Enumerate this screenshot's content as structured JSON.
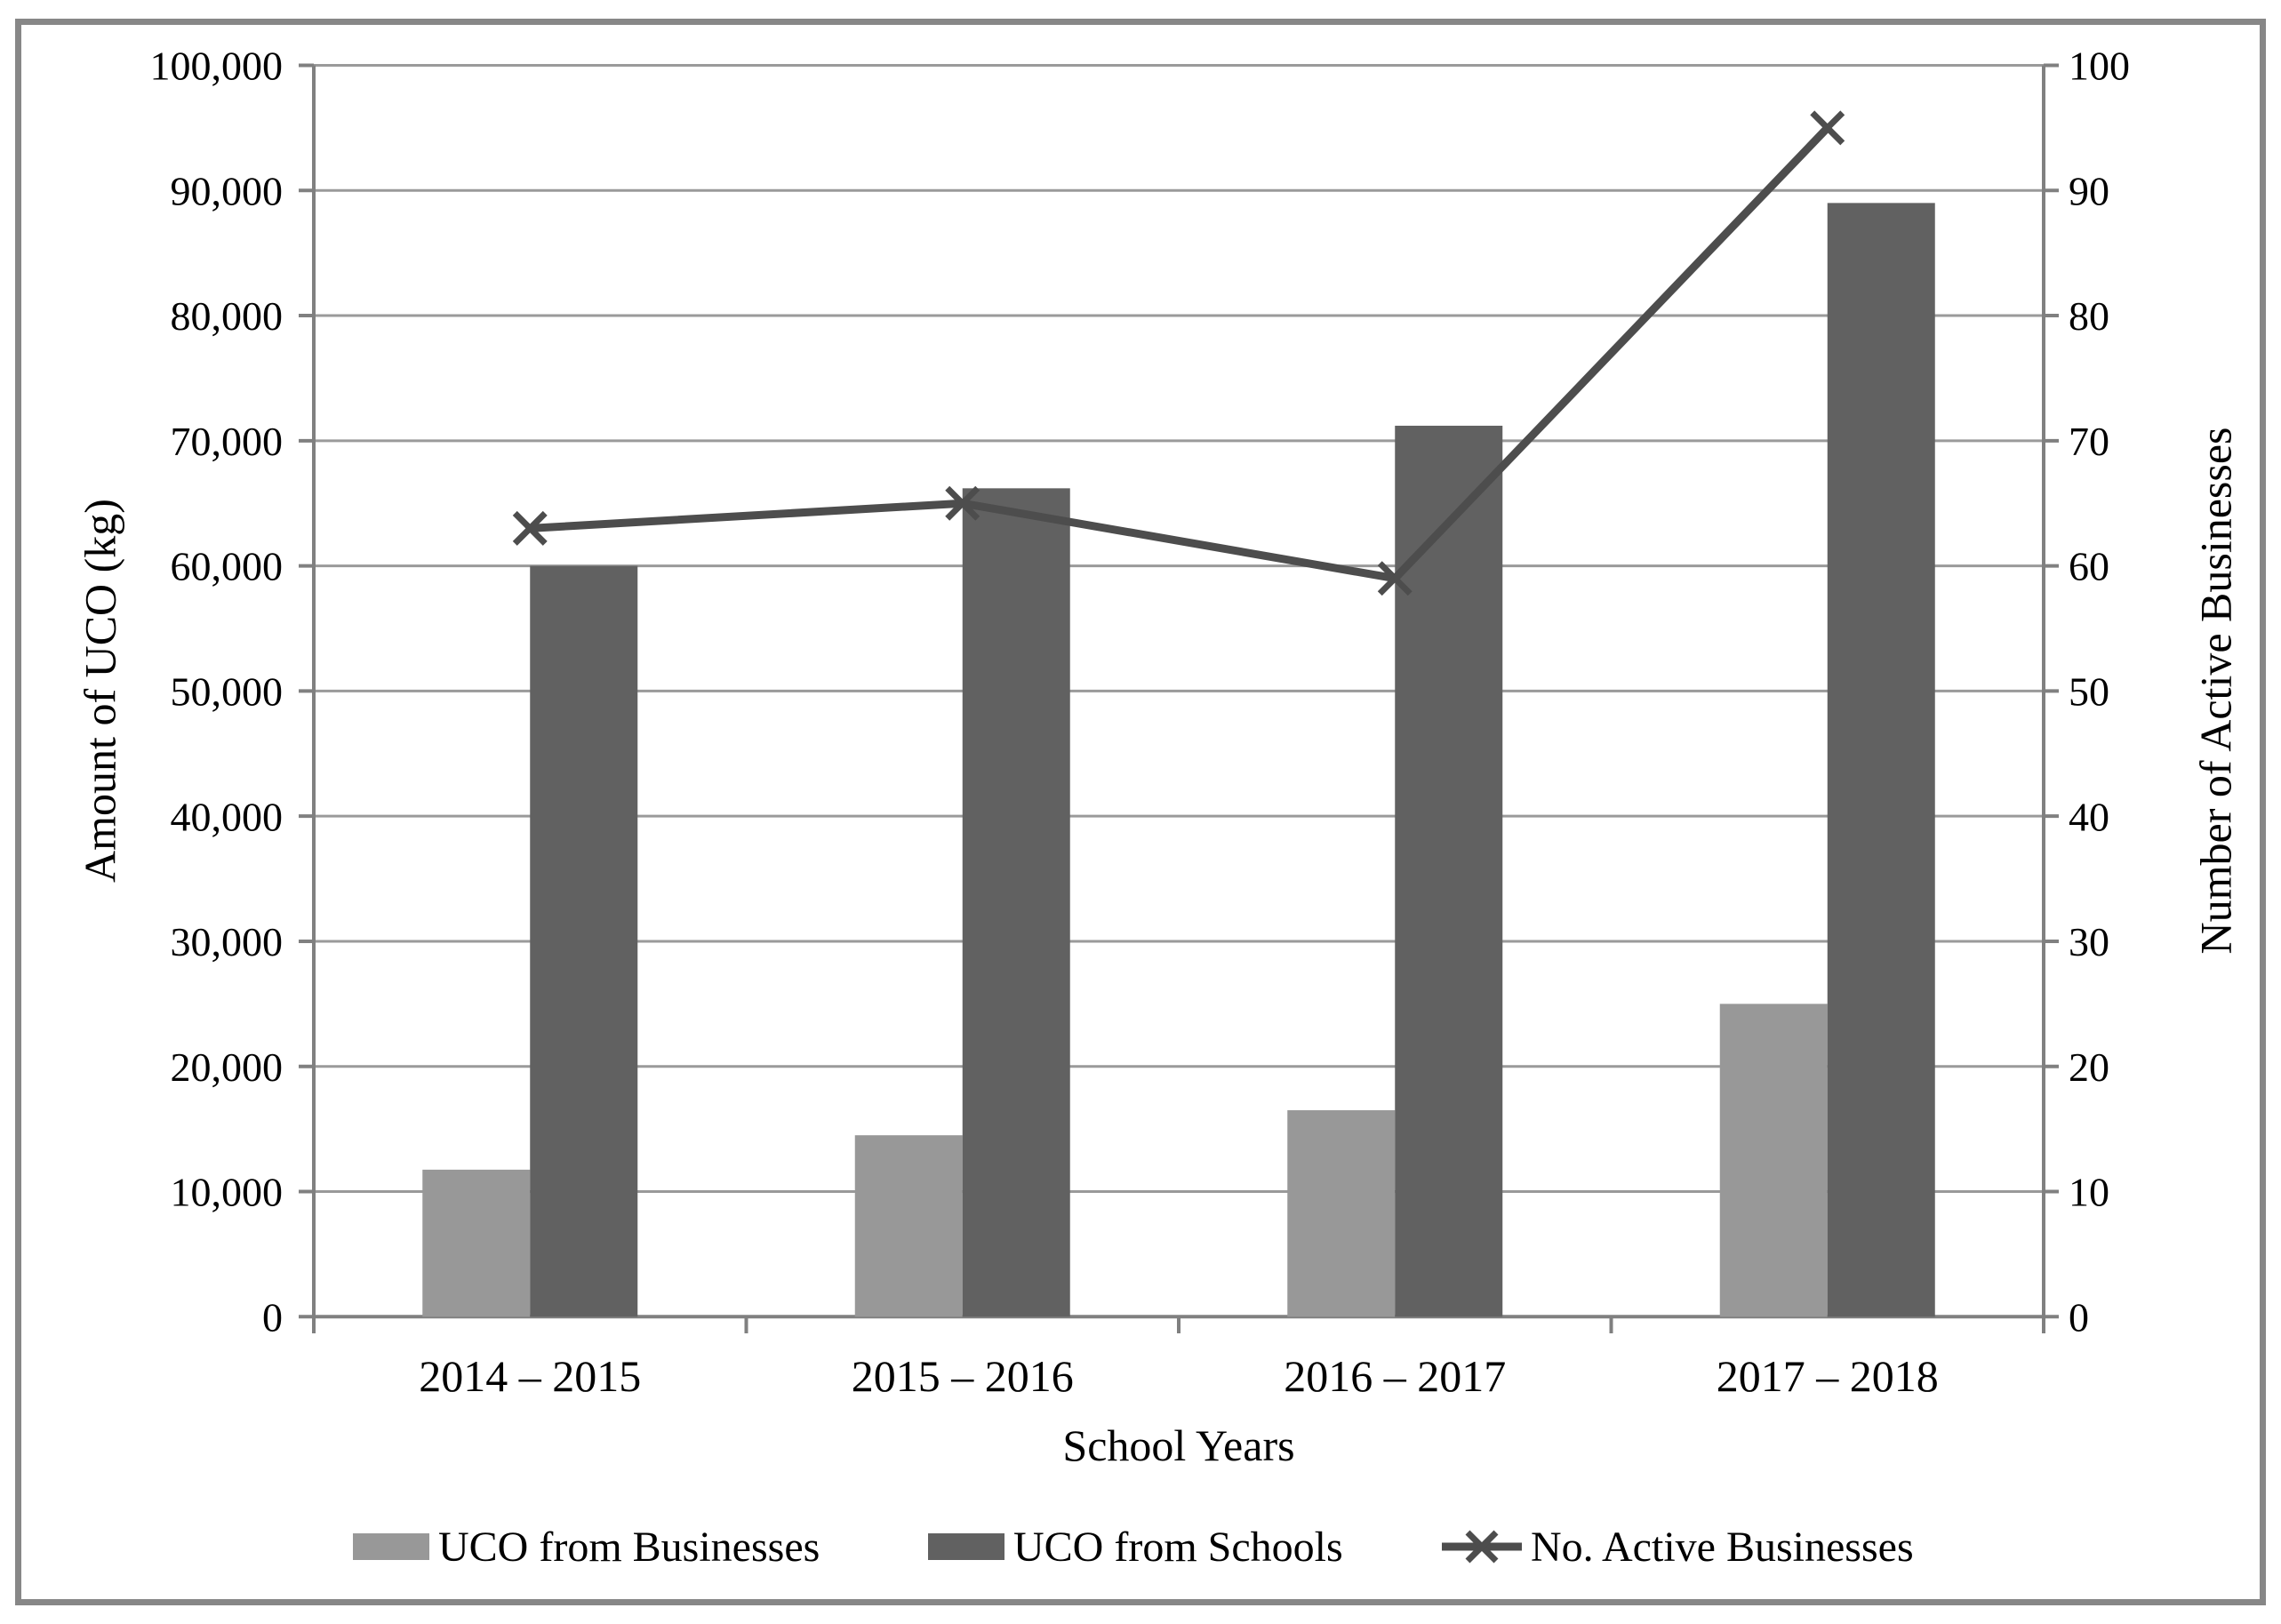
{
  "chart_data": {
    "type": "bar+line combo",
    "title": "",
    "categories": [
      "2014 – 2015",
      "2015 – 2016",
      "2016 – 2017",
      "2017 – 2018"
    ],
    "series": [
      {
        "name": "UCO from Businesses",
        "type": "bar",
        "axis": "left",
        "color": "#989898",
        "values": [
          11750,
          14500,
          16500,
          25000
        ]
      },
      {
        "name": "UCO from Schools",
        "type": "bar",
        "axis": "left",
        "color": "#616161",
        "values": [
          60000,
          66200,
          71200,
          89000
        ]
      },
      {
        "name": "No. Active Businesses",
        "type": "line",
        "axis": "right",
        "color": "#4d4d4d",
        "marker": "x",
        "values": [
          63,
          65,
          59,
          95
        ]
      }
    ],
    "xlabel": "School Years",
    "ylabel_left": "Amount of UCO (kg)",
    "ylabel_right": "Number of Active Businesses",
    "ylim_left": [
      0,
      100000
    ],
    "ylim_right": [
      0,
      100
    ],
    "ytick_step_left": 10000,
    "ytick_step_right": 10,
    "yticks_left": [
      "0",
      "10,000",
      "20,000",
      "30,000",
      "40,000",
      "50,000",
      "60,000",
      "70,000",
      "80,000",
      "90,000",
      "100,000"
    ],
    "yticks_right": [
      "0",
      "10",
      "20",
      "30",
      "40",
      "50",
      "60",
      "70",
      "80",
      "90",
      "100"
    ],
    "grid": true,
    "legend_position": "bottom"
  },
  "colors": {
    "background": "#ffffff",
    "frame": "#878787",
    "gridline": "#9a9a9a",
    "axis": "#808080",
    "text": "#000000"
  }
}
